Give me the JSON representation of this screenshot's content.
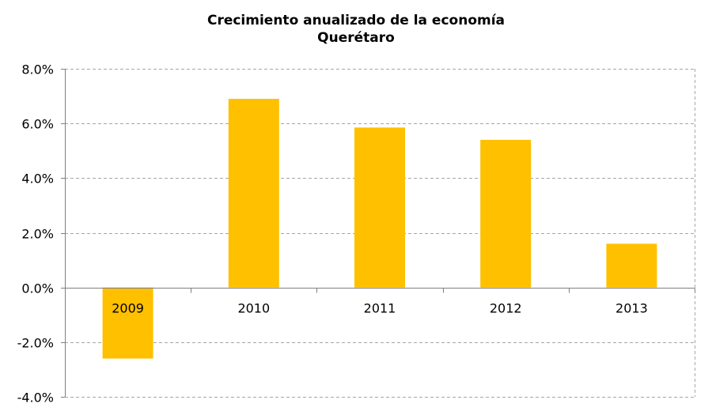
{
  "chart_data": {
    "type": "bar",
    "title": "Crecimiento anualizado de la economía",
    "subtitle": "Querétaro",
    "categories": [
      "2009",
      "2010",
      "2011",
      "2012",
      "2013"
    ],
    "values": [
      -2.6,
      6.9,
      5.85,
      5.4,
      1.6
    ],
    "value_format": "percent",
    "ylim": [
      -4.0,
      8.0
    ],
    "y_ticks": [
      8.0,
      6.0,
      4.0,
      2.0,
      0.0,
      -2.0,
      -4.0
    ],
    "y_tick_labels": [
      "8.0%",
      "6.0%",
      "4.0%",
      "2.0%",
      "0.0%",
      "-2.0%",
      "-4.0%"
    ],
    "xlabel": "",
    "ylabel": "",
    "grid": true,
    "grid_style": "dashed",
    "legend": "none",
    "bar_color": "#FFC000",
    "gridline_color": "#A6A6A6",
    "axis_color": "#808080"
  }
}
